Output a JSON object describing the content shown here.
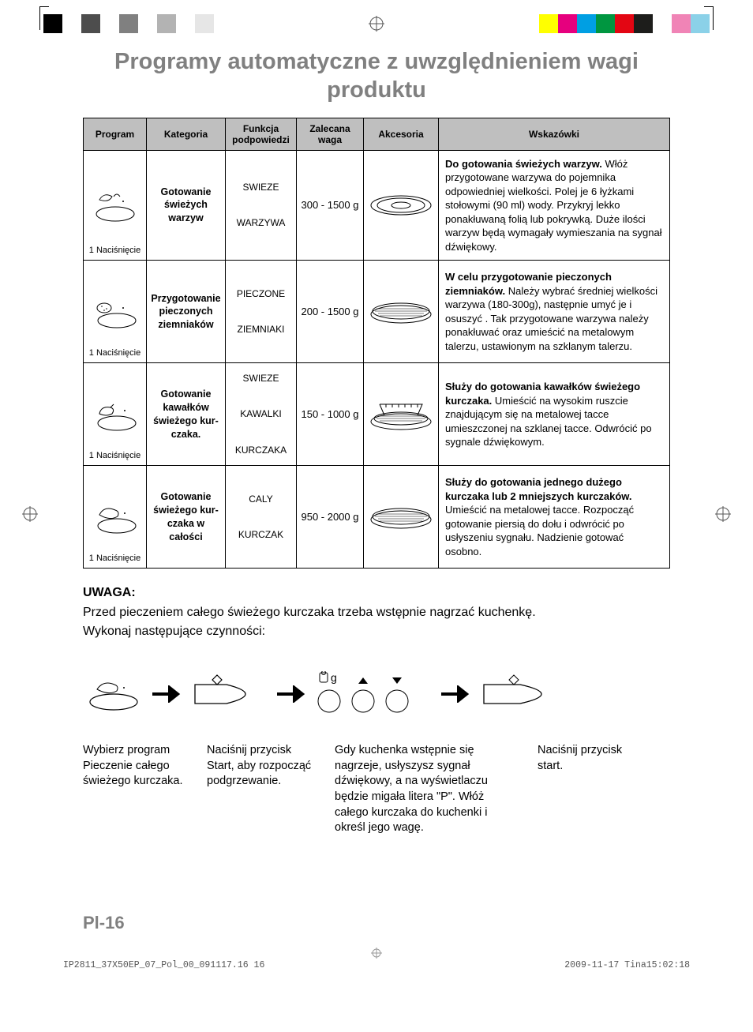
{
  "printbars_left": [
    "#000000",
    "#ffffff",
    "#4d4d4d",
    "#ffffff",
    "#808080",
    "#ffffff",
    "#b3b3b3",
    "#ffffff",
    "#e6e6e6"
  ],
  "printbars_right": [
    "#ffff00",
    "#e6007e",
    "#009fe3",
    "#009640",
    "#e30613",
    "#1d1d1b",
    "#ffffff",
    "#f084b6",
    "#8bd1e8"
  ],
  "title": "Programy automatyczne z uwzględnieniem wagi produktu",
  "headers": {
    "program": "Program",
    "kategoria": "Kategoria",
    "funkcja": "Funkcja podpowiedzi",
    "waga": "Zalecana waga",
    "akcesoria": "Akcesoria",
    "wskazowki": "Wskazówki"
  },
  "press_label": "1 Naciśnięcie",
  "rows": [
    {
      "kategoria": "Gotowanie świeżych warzyw",
      "funkcja_l1": "SWIEZE",
      "funkcja_l2": "WARZYWA",
      "waga": "300 - 1500 g",
      "tips_bold": "Do gotowania świeżych warzyw.",
      "tips": " Włóż przygotowane warzywa do pojemnika odpowiedniej wielkości. Polej je 6 łyżkami stołowymi (90 ml) wody. Przykryj lekko ponakłuwaną folią lub pokrywką. Duże ilości warzyw będą wymagały wymiesza­nia na sygnał dźwiękowy."
    },
    {
      "kategoria": "Przygotowanie pieczonych ziemniaków",
      "funkcja_l1": "PIECZONE",
      "funkcja_l2": "ZIEMNIAKI",
      "waga": "200 - 1500 g",
      "tips_bold": "W celu przygotowanie pieczonych ziemniaków.",
      "tips": " Należy wybrać średniej wielkości warzywa (180-300g), następnie umyć je i osuszyć . Tak przygotowane warzywa należy ponakłuwać oraz umieścić na metalowym talerzu, ustawionym na szklanym talerzu."
    },
    {
      "kategoria": "Gotowanie kawałków świeżego kur­czaka.",
      "funkcja_l1": "SWIEZE",
      "funkcja_l2": "KAWALKI",
      "funkcja_l3": "KURCZAKA",
      "waga": "150 - 1000 g",
      "tips_bold": "Służy do gotowania kawałków świeżego kurczaka.",
      "tips": " Umieścić na wysokim ruszcie znajdującym się na metalowej tacce umieszczonej na szklanej tacce. Odwrócić po sygnale dźwiękowym."
    },
    {
      "kategoria": "Gotowanie świeżego kur­czaka w całości",
      "funkcja_l1": "CALY",
      "funkcja_l2": "KURCZAK",
      "waga": "950 - 2000 g",
      "tips_bold": "Służy do gotowania jednego dużego kurczaka lub 2 mniejszych kurczaków.",
      "tips": " Umieścić na metalowej tacce. Rozpocząć gotowanie piersią do dołu i odwró­cić po usłyszeniu sygnału. Nadzienie gotować osobno."
    }
  ],
  "uwaga": {
    "title": "UWAGA:",
    "line1": "Przed pieczeniem całego świeżego kurczaka trzeba wstępnie nagrzać kuchenkę.",
    "line2": "Wykonaj następujące czynności:"
  },
  "steps": {
    "c1": "Wybierz program Pieczenie całego świeżego kurczaka.",
    "c2": "Naciśnij przycisk Start, aby rozpocząć pod­grzewanie.",
    "c3": "Gdy kuchenka wstępnie się nagrzeje, usłyszysz sygnał dźwiękowy, a na wyświetlaczu będzie migała litera \"P\". Włóż całego kurczaka do kuchenki i określ jego wagę.",
    "c4": "Naciśnij przycisk start."
  },
  "page_num": "Pl-16",
  "footer": {
    "left": "IP2811_37X50EP_07_Pol_00_091117.16   16",
    "right": "2009-11-17   Tina15:02:18"
  }
}
